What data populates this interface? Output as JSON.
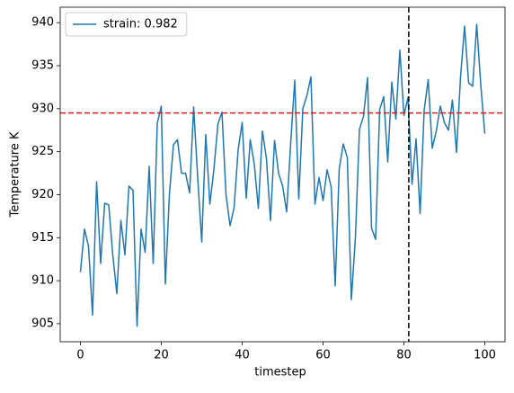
{
  "chart_data": {
    "type": "line",
    "xlabel": "timestep",
    "ylabel": "Temperature K",
    "x": [
      0,
      1,
      2,
      3,
      4,
      5,
      6,
      7,
      8,
      9,
      10,
      11,
      12,
      13,
      14,
      15,
      16,
      17,
      18,
      19,
      20,
      21,
      22,
      23,
      24,
      25,
      26,
      27,
      28,
      29,
      30,
      31,
      32,
      33,
      34,
      35,
      36,
      37,
      38,
      39,
      40,
      41,
      42,
      43,
      44,
      45,
      46,
      47,
      48,
      49,
      50,
      51,
      52,
      53,
      54,
      55,
      56,
      57,
      58,
      59,
      60,
      61,
      62,
      63,
      64,
      65,
      66,
      67,
      68,
      69,
      70,
      71,
      72,
      73,
      74,
      75,
      76,
      77,
      78,
      79,
      80,
      81,
      82,
      83,
      84,
      85,
      86,
      87,
      88,
      89,
      90,
      91,
      92,
      93,
      94,
      95,
      96,
      97,
      98,
      99,
      100
    ],
    "series": [
      {
        "name": "strain: 0.982",
        "color": "#1f77b4",
        "values": [
          911,
          916,
          914,
          906,
          921.5,
          912,
          919,
          918.8,
          913,
          908.5,
          917,
          913,
          921,
          920.5,
          904.7,
          916,
          913.3,
          923.3,
          912,
          928.3,
          930.3,
          909.6,
          920,
          925.8,
          926.4,
          922.5,
          922.5,
          920.2,
          930.2,
          922,
          914.5,
          927,
          918.9,
          922.9,
          928.2,
          929.6,
          920,
          916.4,
          918.5,
          925.2,
          928.4,
          919.6,
          926.4,
          923.5,
          918.4,
          927.4,
          924.2,
          917,
          926.3,
          922.5,
          921,
          918,
          926,
          933.3,
          919.5,
          930,
          931.5,
          933.7,
          918.9,
          922,
          919.3,
          922.9,
          920.9,
          909.4,
          923,
          925.9,
          924.3,
          907.8,
          915,
          927.6,
          929.1,
          933.6,
          916.1,
          914.8,
          929.9,
          931.4,
          923.8,
          933.1,
          928.8,
          936.8,
          929.2,
          931.3,
          921.2,
          926.5,
          917.8,
          929.8,
          933.4,
          925.4,
          927.4,
          930.3,
          928.4,
          927.5,
          931,
          924.9,
          933.7,
          939.6,
          933,
          932.6,
          939.8,
          932.8,
          927.1
        ]
      }
    ],
    "hline": {
      "value": 929.5,
      "color": "#e41a1c"
    },
    "vline": {
      "value": 81.2,
      "color": "#000000"
    },
    "xlim": [
      -5,
      105
    ],
    "ylim": [
      902.9,
      941.8
    ],
    "xticks": [
      0,
      20,
      40,
      60,
      80,
      100
    ],
    "yticks": [
      905,
      910,
      915,
      920,
      925,
      930,
      935,
      940
    ],
    "legend": "upper left",
    "grid": false
  }
}
